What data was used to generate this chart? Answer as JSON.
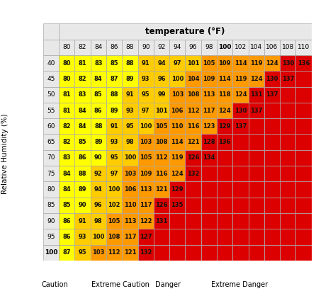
{
  "title": "temperature (°F)",
  "col_labels": [
    80,
    82,
    84,
    86,
    88,
    90,
    92,
    94,
    96,
    98,
    100,
    102,
    104,
    106,
    108,
    110
  ],
  "row_labels": [
    40,
    45,
    50,
    55,
    60,
    65,
    70,
    75,
    80,
    85,
    90,
    95,
    100
  ],
  "ylabel": "Relative Humidity (%)",
  "table": [
    [
      80,
      81,
      83,
      85,
      88,
      91,
      94,
      97,
      101,
      105,
      109,
      114,
      119,
      124,
      130,
      136
    ],
    [
      80,
      82,
      84,
      87,
      89,
      93,
      96,
      100,
      104,
      109,
      114,
      119,
      124,
      130,
      137,
      null
    ],
    [
      81,
      83,
      85,
      88,
      91,
      95,
      99,
      103,
      108,
      113,
      118,
      124,
      131,
      137,
      null,
      null
    ],
    [
      81,
      84,
      86,
      89,
      93,
      97,
      101,
      106,
      112,
      117,
      124,
      130,
      137,
      null,
      null,
      null
    ],
    [
      82,
      84,
      88,
      91,
      95,
      100,
      105,
      110,
      116,
      123,
      129,
      137,
      null,
      null,
      null,
      null
    ],
    [
      82,
      85,
      89,
      93,
      98,
      103,
      108,
      114,
      121,
      128,
      136,
      null,
      null,
      null,
      null,
      null
    ],
    [
      83,
      86,
      90,
      95,
      100,
      105,
      112,
      119,
      126,
      134,
      null,
      null,
      null,
      null,
      null,
      null
    ],
    [
      84,
      88,
      92,
      97,
      103,
      109,
      116,
      124,
      132,
      null,
      null,
      null,
      null,
      null,
      null,
      null
    ],
    [
      84,
      89,
      94,
      100,
      106,
      113,
      121,
      129,
      null,
      null,
      null,
      null,
      null,
      null,
      null,
      null
    ],
    [
      85,
      90,
      96,
      102,
      110,
      117,
      126,
      135,
      null,
      null,
      null,
      null,
      null,
      null,
      null,
      null
    ],
    [
      86,
      91,
      98,
      105,
      113,
      122,
      131,
      null,
      null,
      null,
      null,
      null,
      null,
      null,
      null,
      null
    ],
    [
      86,
      93,
      100,
      108,
      117,
      127,
      null,
      null,
      null,
      null,
      null,
      null,
      null,
      null,
      null,
      null
    ],
    [
      87,
      95,
      103,
      112,
      121,
      132,
      null,
      null,
      null,
      null,
      null,
      null,
      null,
      null,
      null,
      null
    ]
  ],
  "header_bg": "#e8e8e8",
  "grid_color": "#aaaaaa",
  "legend_items": [
    {
      "label": "Caution",
      "color": "#ffff00"
    },
    {
      "label": "Extreme Caution",
      "color": "#ffcc00"
    },
    {
      "label": "Danger",
      "color": "#ff9900"
    },
    {
      "label": "Extreme Danger",
      "color": "#dd0000"
    }
  ],
  "thresholds": [
    91,
    103,
    125
  ],
  "colors": [
    "#ffff00",
    "#ffcc00",
    "#ff9900",
    "#dd0000"
  ],
  "empty_color": "#dd0000"
}
